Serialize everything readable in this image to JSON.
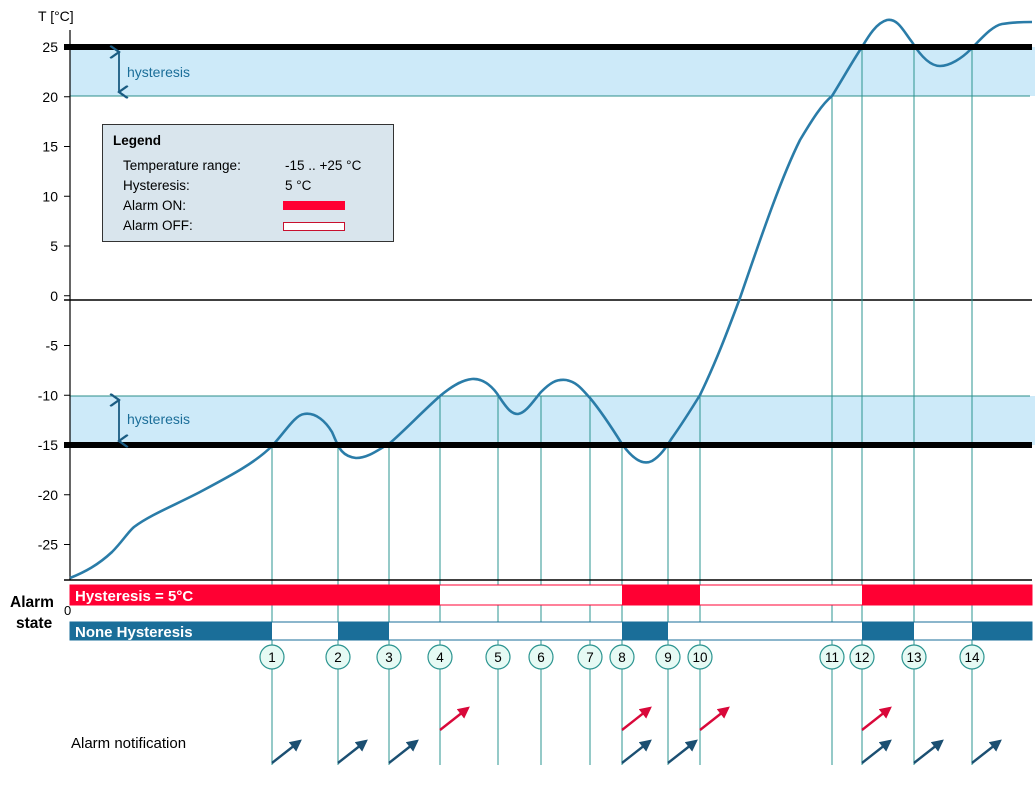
{
  "axis": {
    "y_label": "T [°C]",
    "y_ticks": [
      25,
      20,
      15,
      10,
      5,
      0,
      -5,
      -10,
      -15,
      -20,
      -25
    ],
    "y_range": [
      -28,
      28
    ]
  },
  "limits": {
    "upper": 25,
    "lower": -15,
    "hysteresis_value": 5
  },
  "band_labels": {
    "upper": "hysteresis",
    "lower": "hysteresis"
  },
  "legend": {
    "title": "Legend",
    "range_label": "Temperature range:",
    "range_value": "-15 .. +25 °C",
    "hyst_label": "Hysteresis:",
    "hyst_value": "5 °C",
    "on_label": "Alarm ON:",
    "off_label": "Alarm OFF:"
  },
  "alarm_state": {
    "label": "Alarm\nstate",
    "zero_label": "0",
    "bar1_label": "Hysteresis = 5°C",
    "bar2_label": "None Hysteresis",
    "colors": {
      "hyst_on": "#ff0033",
      "none_on": "#1a6e99",
      "off_fill": "#ffffff"
    },
    "hyst_on_segments": [
      [
        0,
        4
      ],
      [
        8,
        10
      ],
      [
        12,
        99
      ]
    ],
    "none_on_segments": [
      [
        0,
        1
      ],
      [
        2,
        3
      ],
      [
        8,
        9
      ],
      [
        12,
        13
      ],
      [
        14,
        99
      ]
    ]
  },
  "events": [
    "1",
    "2",
    "3",
    "4",
    "5",
    "6",
    "7",
    "8",
    "9",
    "10",
    "11",
    "12",
    "13",
    "14"
  ],
  "notification": {
    "label": "Alarm notification",
    "blue_arrows": [
      "1",
      "2",
      "3",
      "8",
      "9",
      "12",
      "13",
      "14"
    ],
    "red_arrows": [
      "4",
      "8",
      "10",
      "12"
    ]
  },
  "colors": {
    "curve": "#2a7ca8",
    "band": "#cdeaf9",
    "grid": "#2b8f8a",
    "limit": "#000000",
    "event": "#2b9490"
  }
}
